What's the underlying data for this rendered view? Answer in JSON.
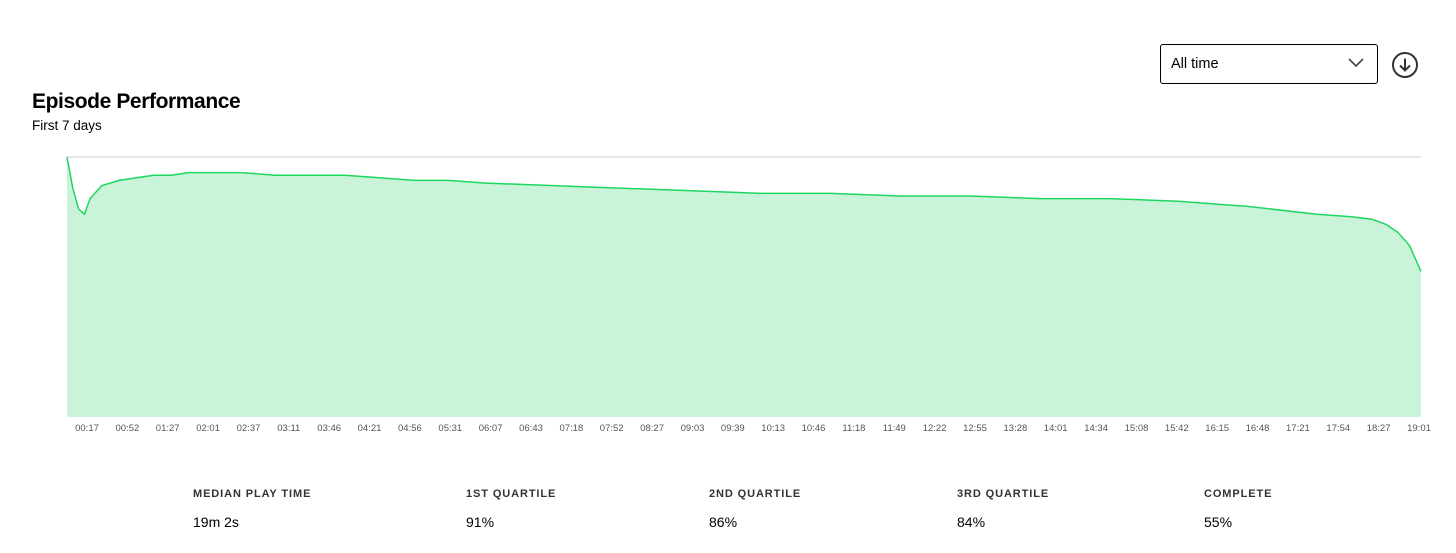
{
  "header": {
    "title": "Episode Performance",
    "subtitle": "First 7 days"
  },
  "controls": {
    "range_value": "All time",
    "download_icon": "download-circle-icon",
    "dropdown_icon": "chevron-down-icon"
  },
  "colors": {
    "line": "#1ed760",
    "fill": "#c9f4d9",
    "axis": "#cccccc"
  },
  "chart_data": {
    "type": "area",
    "title": "Episode Performance",
    "subtitle": "First 7 days",
    "xlabel": "",
    "ylabel": "",
    "ylim": [
      0,
      100
    ],
    "grid": false,
    "tick_labels": [
      "00:17",
      "00:52",
      "01:27",
      "02:01",
      "02:37",
      "03:11",
      "03:46",
      "04:21",
      "04:56",
      "05:31",
      "06:07",
      "06:43",
      "07:18",
      "07:52",
      "08:27",
      "09:03",
      "09:39",
      "10:13",
      "10:46",
      "11:18",
      "11:49",
      "12:22",
      "12:55",
      "13:28",
      "14:01",
      "14:34",
      "15:08",
      "15:42",
      "16:15",
      "16:48",
      "17:21",
      "17:54",
      "18:27",
      "19:01"
    ],
    "x_seconds": [
      0,
      5,
      10,
      15,
      20,
      30,
      45,
      60,
      75,
      90,
      105,
      120,
      150,
      180,
      210,
      240,
      270,
      300,
      330,
      360,
      420,
      480,
      540,
      600,
      660,
      720,
      780,
      840,
      900,
      960,
      1020,
      1080,
      1110,
      1128,
      1140,
      1150,
      1160,
      1170
    ],
    "y_percent": [
      100,
      88,
      80,
      78,
      84,
      89,
      91,
      92,
      93,
      93,
      94,
      94,
      94,
      93,
      93,
      93,
      92,
      91,
      91,
      90,
      89,
      88,
      87,
      86,
      86,
      85,
      85,
      84,
      84,
      83,
      81,
      78,
      77,
      76,
      74,
      71,
      66,
      56
    ]
  },
  "stats": [
    {
      "label": "MEDIAN PLAY TIME",
      "value": "19m 2s"
    },
    {
      "label": "1ST QUARTILE",
      "value": "91%"
    },
    {
      "label": "2ND QUARTILE",
      "value": "86%"
    },
    {
      "label": "3RD QUARTILE",
      "value": "84%"
    },
    {
      "label": "COMPLETE",
      "value": "55%"
    }
  ]
}
